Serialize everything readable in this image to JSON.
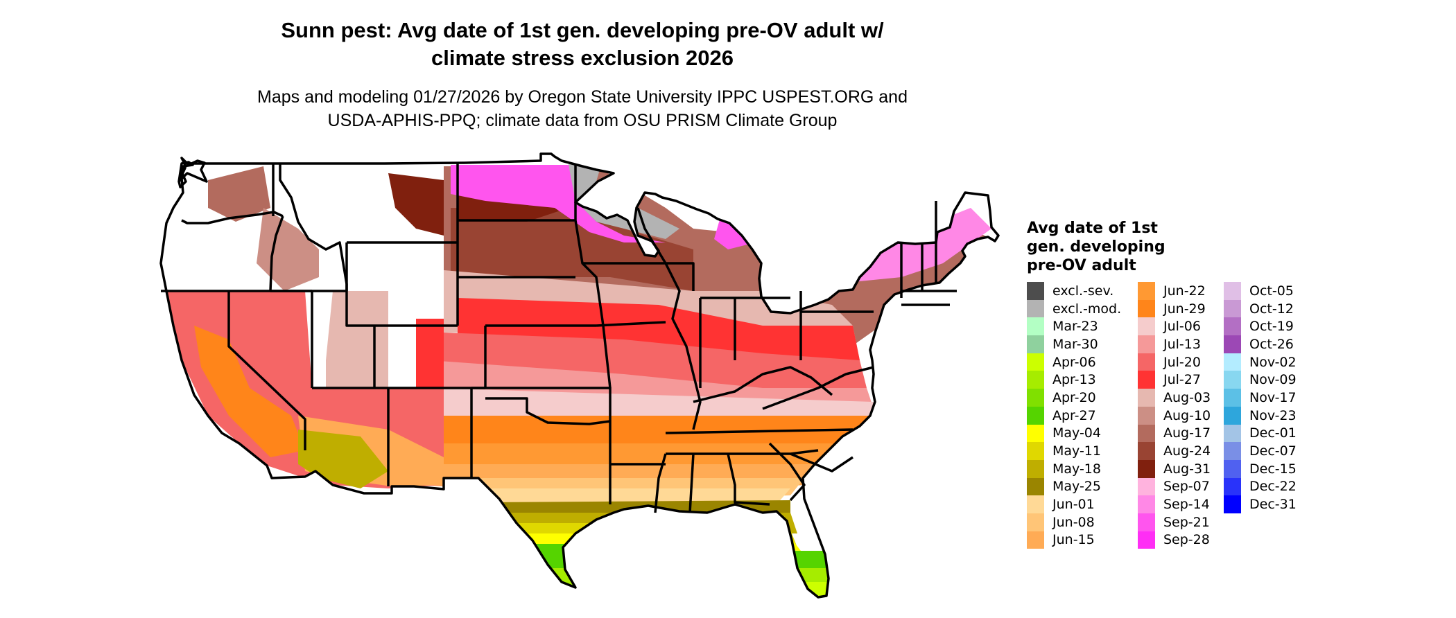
{
  "title": {
    "line1": "Sunn pest: Avg date of 1st gen. developing pre-OV adult w/",
    "line2": "climate stress exclusion 2026"
  },
  "subtitle": {
    "line1": "Maps and modeling 01/27/2026 by Oregon State University IPPC USPEST.ORG and",
    "line2": "USDA-APHIS-PPQ; climate data from OSU PRISM Climate Group"
  },
  "map": {
    "region": "Contiguous United States",
    "boundary_color": "#000000",
    "no_data_color": "#ffffff"
  },
  "legend": {
    "title_lines": [
      "Avg date of 1st",
      "gen. developing",
      "pre-OV adult"
    ],
    "columns": [
      [
        {
          "label": "excl.-sev.",
          "color": "#4d4d4d"
        },
        {
          "label": "excl.-mod.",
          "color": "#b3b3b3"
        },
        {
          "label": "Mar-23",
          "color": "#b3ffc4"
        },
        {
          "label": "Mar-30",
          "color": "#8fd19e"
        },
        {
          "label": "Apr-06",
          "color": "#ccff00"
        },
        {
          "label": "Apr-13",
          "color": "#a6ec00"
        },
        {
          "label": "Apr-20",
          "color": "#80e000"
        },
        {
          "label": "Apr-27",
          "color": "#55d400"
        },
        {
          "label": "May-04",
          "color": "#ffff00"
        },
        {
          "label": "May-11",
          "color": "#e0d800"
        },
        {
          "label": "May-18",
          "color": "#bfae00"
        },
        {
          "label": "May-25",
          "color": "#9a8500"
        },
        {
          "label": "Jun-01",
          "color": "#ffd996"
        },
        {
          "label": "Jun-08",
          "color": "#ffc577"
        },
        {
          "label": "Jun-15",
          "color": "#ffab55"
        }
      ],
      [
        {
          "label": "Jun-22",
          "color": "#ff9933"
        },
        {
          "label": "Jun-29",
          "color": "#ff851a"
        },
        {
          "label": "Jul-06",
          "color": "#f5cccc"
        },
        {
          "label": "Jul-13",
          "color": "#f59999"
        },
        {
          "label": "Jul-20",
          "color": "#f56666"
        },
        {
          "label": "Jul-27",
          "color": "#ff3333"
        },
        {
          "label": "Aug-03",
          "color": "#e6b8b0"
        },
        {
          "label": "Aug-10",
          "color": "#cc8f85"
        },
        {
          "label": "Aug-17",
          "color": "#b36b5e"
        },
        {
          "label": "Aug-24",
          "color": "#994433"
        },
        {
          "label": "Aug-31",
          "color": "#80200e"
        },
        {
          "label": "Sep-07",
          "color": "#ffb3de"
        },
        {
          "label": "Sep-14",
          "color": "#ff88e6"
        },
        {
          "label": "Sep-21",
          "color": "#ff55ee"
        },
        {
          "label": "Sep-28",
          "color": "#ff2ef5"
        }
      ],
      [
        {
          "label": "Oct-05",
          "color": "#e0bfe6"
        },
        {
          "label": "Oct-12",
          "color": "#c999d4"
        },
        {
          "label": "Oct-19",
          "color": "#b36fc4"
        },
        {
          "label": "Oct-26",
          "color": "#9c48b5"
        },
        {
          "label": "Nov-02",
          "color": "#b3ecff"
        },
        {
          "label": "Nov-09",
          "color": "#88d7f0"
        },
        {
          "label": "Nov-17",
          "color": "#5cc0e6"
        },
        {
          "label": "Nov-23",
          "color": "#2ea6dc"
        },
        {
          "label": "Dec-01",
          "color": "#a3c4e6"
        },
        {
          "label": "Dec-07",
          "color": "#7a8fe6"
        },
        {
          "label": "Dec-15",
          "color": "#5061f0"
        },
        {
          "label": "Dec-22",
          "color": "#2933fa"
        },
        {
          "label": "Dec-31",
          "color": "#0000ff"
        }
      ]
    ]
  }
}
